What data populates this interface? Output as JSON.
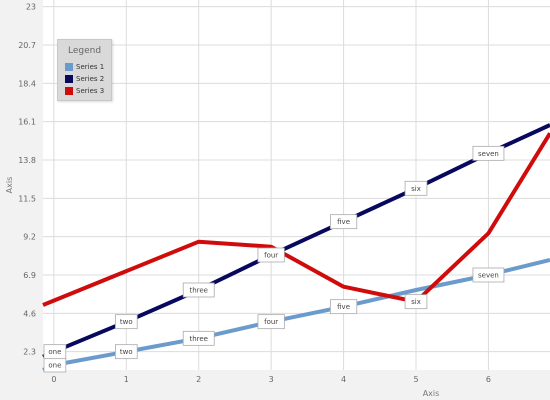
{
  "chart_data": {
    "type": "line",
    "xlabel": "Axis",
    "ylabel": "Axis",
    "x_ticks": [
      0,
      1,
      2,
      3,
      4,
      5,
      6
    ],
    "y_ticks": [
      "2.3",
      "4.6",
      "6.9",
      "9.2",
      "11.5",
      "13.8",
      "16.1",
      "18.4",
      "20.7",
      "23"
    ],
    "xlim": [
      -0.15,
      6.85
    ],
    "ylim": [
      1.2,
      23.4
    ],
    "grid": true,
    "legend": {
      "title": "Legend",
      "position": "top-left",
      "entries": [
        "Series 1",
        "Series 2",
        "Series 3"
      ]
    },
    "series": [
      {
        "name": "Series 1",
        "color": "#6b9bcd",
        "points": [
          {
            "x": -0.15,
            "y": 1.2
          },
          {
            "x": 0,
            "y": 1.5,
            "label": "one"
          },
          {
            "x": 1,
            "y": 2.3,
            "label": "two"
          },
          {
            "x": 2,
            "y": 3.1,
            "label": "three"
          },
          {
            "x": 3,
            "y": 4.1,
            "label": "four"
          },
          {
            "x": 4,
            "y": 5.0,
            "label": "five"
          },
          {
            "x": 5,
            "y": 6.0
          },
          {
            "x": 6,
            "y": 6.9,
            "label": "seven"
          },
          {
            "x": 6.85,
            "y": 7.8
          }
        ]
      },
      {
        "name": "Series 2",
        "color": "#07085e",
        "points": [
          {
            "x": -0.15,
            "y": 2.0
          },
          {
            "x": 0,
            "y": 2.3,
            "label": "one"
          },
          {
            "x": 1,
            "y": 4.1,
            "label": "two"
          },
          {
            "x": 2,
            "y": 6.0,
            "label": "three"
          },
          {
            "x": 3,
            "y": 8.1,
            "label": "four"
          },
          {
            "x": 4,
            "y": 10.1,
            "label": "five"
          },
          {
            "x": 5,
            "y": 12.1,
            "label": "six"
          },
          {
            "x": 6,
            "y": 14.2,
            "label": "seven"
          },
          {
            "x": 6.85,
            "y": 15.9
          }
        ]
      },
      {
        "name": "Series 3",
        "color": "#d00b0b",
        "points": [
          {
            "x": -0.15,
            "y": 5.1
          },
          {
            "x": 2,
            "y": 8.9
          },
          {
            "x": 3,
            "y": 8.6
          },
          {
            "x": 4,
            "y": 6.2
          },
          {
            "x": 5,
            "y": 5.3,
            "label": "six"
          },
          {
            "x": 6,
            "y": 9.4
          },
          {
            "x": 6.85,
            "y": 15.4
          }
        ]
      }
    ]
  }
}
